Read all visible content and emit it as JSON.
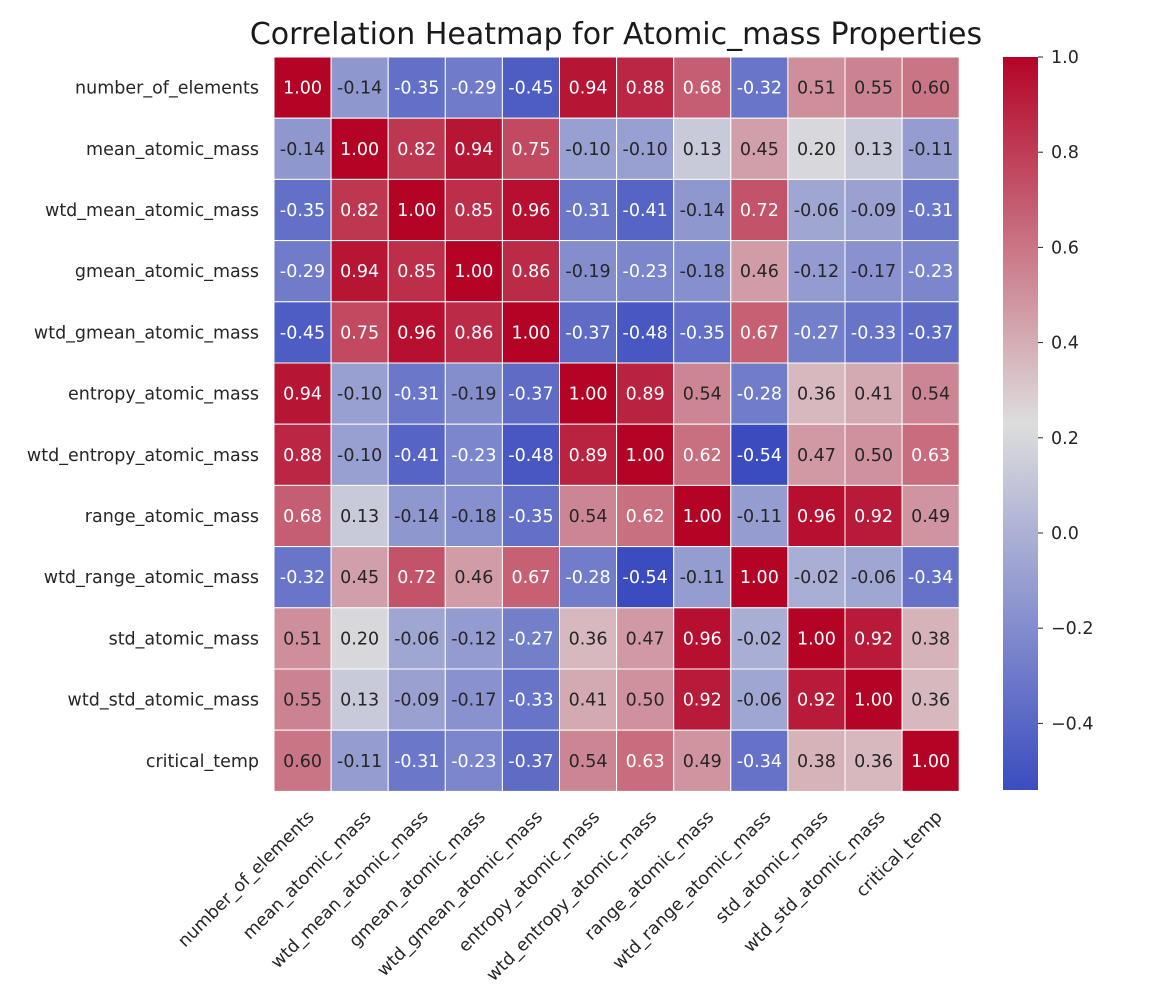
{
  "chart_data": {
    "type": "heatmap",
    "title": "Correlation Heatmap for Atomic_mass Properties",
    "xlabel": "",
    "ylabel": "",
    "row_labels": [
      "number_of_elements",
      "mean_atomic_mass",
      "wtd_mean_atomic_mass",
      "gmean_atomic_mass",
      "wtd_gmean_atomic_mass",
      "entropy_atomic_mass",
      "wtd_entropy_atomic_mass",
      "range_atomic_mass",
      "wtd_range_atomic_mass",
      "std_atomic_mass",
      "wtd_std_atomic_mass",
      "critical_temp"
    ],
    "col_labels": [
      "number_of_elements",
      "mean_atomic_mass",
      "wtd_mean_atomic_mass",
      "gmean_atomic_mass",
      "wtd_gmean_atomic_mass",
      "entropy_atomic_mass",
      "wtd_entropy_atomic_mass",
      "range_atomic_mass",
      "wtd_range_atomic_mass",
      "std_atomic_mass",
      "wtd_std_atomic_mass",
      "critical_temp"
    ],
    "values": [
      [
        1.0,
        -0.14,
        -0.35,
        -0.29,
        -0.45,
        0.94,
        0.88,
        0.68,
        -0.32,
        0.51,
        0.55,
        0.6
      ],
      [
        -0.14,
        1.0,
        0.82,
        0.94,
        0.75,
        -0.1,
        -0.1,
        0.13,
        0.45,
        0.2,
        0.13,
        -0.11
      ],
      [
        -0.35,
        0.82,
        1.0,
        0.85,
        0.96,
        -0.31,
        -0.41,
        -0.14,
        0.72,
        -0.06,
        -0.09,
        -0.31
      ],
      [
        -0.29,
        0.94,
        0.85,
        1.0,
        0.86,
        -0.19,
        -0.23,
        -0.18,
        0.46,
        -0.12,
        -0.17,
        -0.23
      ],
      [
        -0.45,
        0.75,
        0.96,
        0.86,
        1.0,
        -0.37,
        -0.48,
        -0.35,
        0.67,
        -0.27,
        -0.33,
        -0.37
      ],
      [
        0.94,
        -0.1,
        -0.31,
        -0.19,
        -0.37,
        1.0,
        0.89,
        0.54,
        -0.28,
        0.36,
        0.41,
        0.54
      ],
      [
        0.88,
        -0.1,
        -0.41,
        -0.23,
        -0.48,
        0.89,
        1.0,
        0.62,
        -0.54,
        0.47,
        0.5,
        0.63
      ],
      [
        0.68,
        0.13,
        -0.14,
        -0.18,
        -0.35,
        0.54,
        0.62,
        1.0,
        -0.11,
        0.96,
        0.92,
        0.49
      ],
      [
        -0.32,
        0.45,
        0.72,
        0.46,
        0.67,
        -0.28,
        -0.54,
        -0.11,
        1.0,
        -0.02,
        -0.06,
        -0.34
      ],
      [
        0.51,
        0.2,
        -0.06,
        -0.12,
        -0.27,
        0.36,
        0.47,
        0.96,
        -0.02,
        1.0,
        0.92,
        0.38
      ],
      [
        0.55,
        0.13,
        -0.09,
        -0.17,
        -0.33,
        0.41,
        0.5,
        0.92,
        -0.06,
        0.92,
        1.0,
        0.36
      ],
      [
        0.6,
        -0.11,
        -0.31,
        -0.23,
        -0.37,
        0.54,
        0.63,
        0.49,
        -0.34,
        0.38,
        0.36,
        1.0
      ]
    ],
    "value_format": "0.00",
    "colormap": "coolwarm",
    "colormap_stops": [
      "#3b4cc0",
      "#dddddd",
      "#b40426"
    ],
    "color_range": [
      -0.54,
      1.0
    ],
    "colorbar_ticks": [
      1.0,
      0.8,
      0.6,
      0.4,
      0.2,
      0.0,
      -0.2,
      -0.4
    ],
    "colorbar_tick_labels": [
      "1.0",
      "0.8",
      "0.6",
      "0.4",
      "0.2",
      "0.0",
      "−0.2",
      "−0.4"
    ],
    "grid_line_color": "#ffffff",
    "legend": "colorbar-right"
  }
}
